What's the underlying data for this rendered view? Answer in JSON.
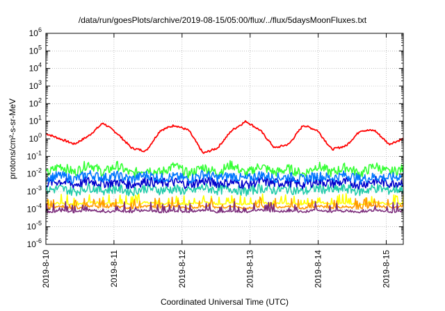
{
  "chart_data": {
    "type": "line",
    "title": "/data/run/goesPlots/archive/2019-08-15/05:00/flux/../flux/5daysMoonFluxes.txt",
    "xlabel": "Coordinated Universal Time (UTC)",
    "ylabel": "protons/cm²-s-sr-MeV",
    "yscale": "log",
    "ylim": [
      1e-06,
      1000000.0
    ],
    "xlim_days": [
      0,
      5.25
    ],
    "x_ticks": [
      "2019-8-10",
      "2019-8-11",
      "2019-8-12",
      "2019-8-13",
      "2019-8-14",
      "2019-8-15"
    ],
    "y_tick_exponents": [
      -6,
      -5,
      -4,
      -3,
      -2,
      -1,
      0,
      1,
      2,
      3,
      4,
      5,
      6
    ],
    "y_tick_base": "10",
    "grid": true,
    "legend": "none",
    "series": [
      {
        "color": "#ff0000",
        "profile": "orbit",
        "values": [
          2.0,
          1.0,
          0.5,
          1.5,
          8.0,
          2.0,
          0.3,
          0.2,
          3.0,
          6.0,
          3.0,
          0.15,
          0.3,
          3.0,
          10.0,
          3.0,
          0.3,
          0.5,
          6.0,
          3.0,
          0.25,
          0.4,
          3.0,
          3.0,
          0.5,
          1.0
        ]
      },
      {
        "color": "#33ff33",
        "profile": "noisy",
        "values": [
          0.01,
          0.03,
          0.012,
          0.04,
          0.012,
          0.03,
          0.01,
          0.02,
          0.012,
          0.03,
          0.01,
          0.025,
          0.012,
          0.035,
          0.01,
          0.03,
          0.012,
          0.02,
          0.01,
          0.03,
          0.012,
          0.025,
          0.01,
          0.03,
          0.012,
          0.02
        ]
      },
      {
        "color": "#0077ff",
        "profile": "noisy",
        "values": [
          0.006,
          0.008,
          0.005,
          0.01,
          0.006,
          0.008,
          0.005,
          0.009,
          0.006,
          0.007,
          0.005,
          0.01,
          0.006,
          0.008,
          0.005,
          0.009,
          0.006,
          0.007,
          0.005,
          0.008,
          0.006,
          0.009,
          0.005,
          0.007,
          0.006,
          0.008
        ]
      },
      {
        "color": "#0000cc",
        "profile": "noisy",
        "values": [
          0.003,
          0.004,
          0.0025,
          0.004,
          0.003,
          0.0035,
          0.0025,
          0.004,
          0.003,
          0.0035,
          0.0025,
          0.004,
          0.003,
          0.0035,
          0.0025,
          0.004,
          0.003,
          0.0035,
          0.0025,
          0.004,
          0.003,
          0.0035,
          0.0025,
          0.004,
          0.003,
          0.0035
        ]
      },
      {
        "color": "#22ccaa",
        "profile": "noisy",
        "values": [
          0.0012,
          0.0015,
          0.001,
          0.0018,
          0.0012,
          0.0015,
          0.001,
          0.0016,
          0.0012,
          0.0014,
          0.001,
          0.0017,
          0.0012,
          0.0015,
          0.001,
          0.0016,
          0.0012,
          0.0014,
          0.001,
          0.0016,
          0.0012,
          0.0015,
          0.001,
          0.0016,
          0.0012,
          0.0015
        ]
      },
      {
        "color": "#ffff00",
        "profile": "spiky",
        "values": [
          0.00018,
          0.00022,
          0.00017,
          0.00025,
          0.0002,
          0.00022,
          0.00018,
          0.00024,
          0.0002,
          0.00022,
          0.00018,
          0.00025,
          0.0002,
          0.00022,
          0.00018,
          0.00024,
          0.0002,
          0.00022,
          0.00018,
          0.00025,
          0.0002,
          0.00022,
          0.00018,
          0.00024,
          0.0002,
          0.00022
        ]
      },
      {
        "color": "#ff9900",
        "profile": "spiky",
        "values": [
          0.00012,
          0.00014,
          0.00011,
          0.00015,
          0.00012,
          0.00014,
          0.00011,
          0.00015,
          0.00012,
          0.00014,
          0.00011,
          0.00015,
          0.00012,
          0.00014,
          0.00011,
          0.00015,
          0.00012,
          0.00014,
          0.00011,
          0.00015,
          0.00012,
          0.00014,
          0.00011,
          0.00015,
          0.00012,
          0.00014
        ]
      },
      {
        "color": "#7a2a7a",
        "profile": "spiky",
        "values": [
          7e-05,
          8e-05,
          7e-05,
          9e-05,
          7e-05,
          8e-05,
          7e-05,
          9e-05,
          7e-05,
          8e-05,
          7e-05,
          9e-05,
          7e-05,
          8e-05,
          7e-05,
          9e-05,
          7e-05,
          8e-05,
          7e-05,
          9e-05,
          7e-05,
          8e-05,
          7e-05,
          9e-05,
          7e-05,
          8e-05
        ]
      }
    ]
  }
}
